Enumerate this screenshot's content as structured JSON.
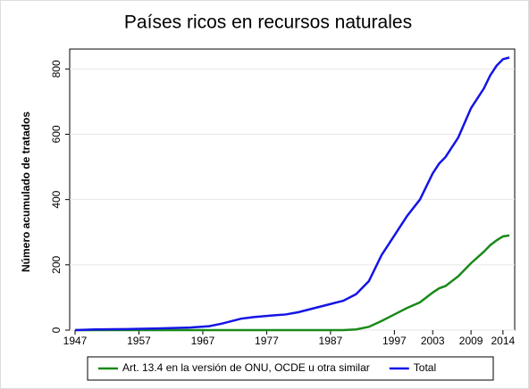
{
  "chart_data": {
    "type": "line",
    "title": "Países ricos en recursos  naturales",
    "y_label": "Número acumulado  de tratados",
    "x": [
      1947,
      1950,
      1955,
      1960,
      1965,
      1968,
      1970,
      1973,
      1975,
      1978,
      1980,
      1982,
      1985,
      1987,
      1989,
      1991,
      1993,
      1995,
      1997,
      1999,
      2001,
      2003,
      2004,
      2005,
      2007,
      2009,
      2011,
      2012,
      2013,
      2014,
      2015
    ],
    "series": [
      {
        "name": "Art. 13.4 en la versión de ONU, OCDE u otra similar",
        "color": "#1a8a1a",
        "values": [
          0,
          0,
          0,
          0,
          0,
          0,
          0,
          0,
          0,
          0,
          0,
          0,
          0,
          0,
          0,
          2,
          10,
          28,
          48,
          68,
          85,
          115,
          128,
          135,
          165,
          205,
          240,
          260,
          275,
          287,
          290
        ]
      },
      {
        "name": "Total",
        "color": "#1414e6",
        "values": [
          0,
          2,
          3,
          5,
          8,
          12,
          20,
          35,
          40,
          45,
          48,
          55,
          70,
          80,
          90,
          110,
          150,
          230,
          290,
          350,
          400,
          480,
          510,
          530,
          590,
          680,
          740,
          780,
          810,
          830,
          835
        ]
      }
    ],
    "xlim": [
      1947,
      2015
    ],
    "xticks": [
      1947,
      1957,
      1967,
      1977,
      1987,
      1997,
      2003,
      2009,
      2014
    ],
    "ylim": [
      0,
      850
    ],
    "yticks": [
      0,
      200,
      400,
      600,
      800
    ]
  }
}
